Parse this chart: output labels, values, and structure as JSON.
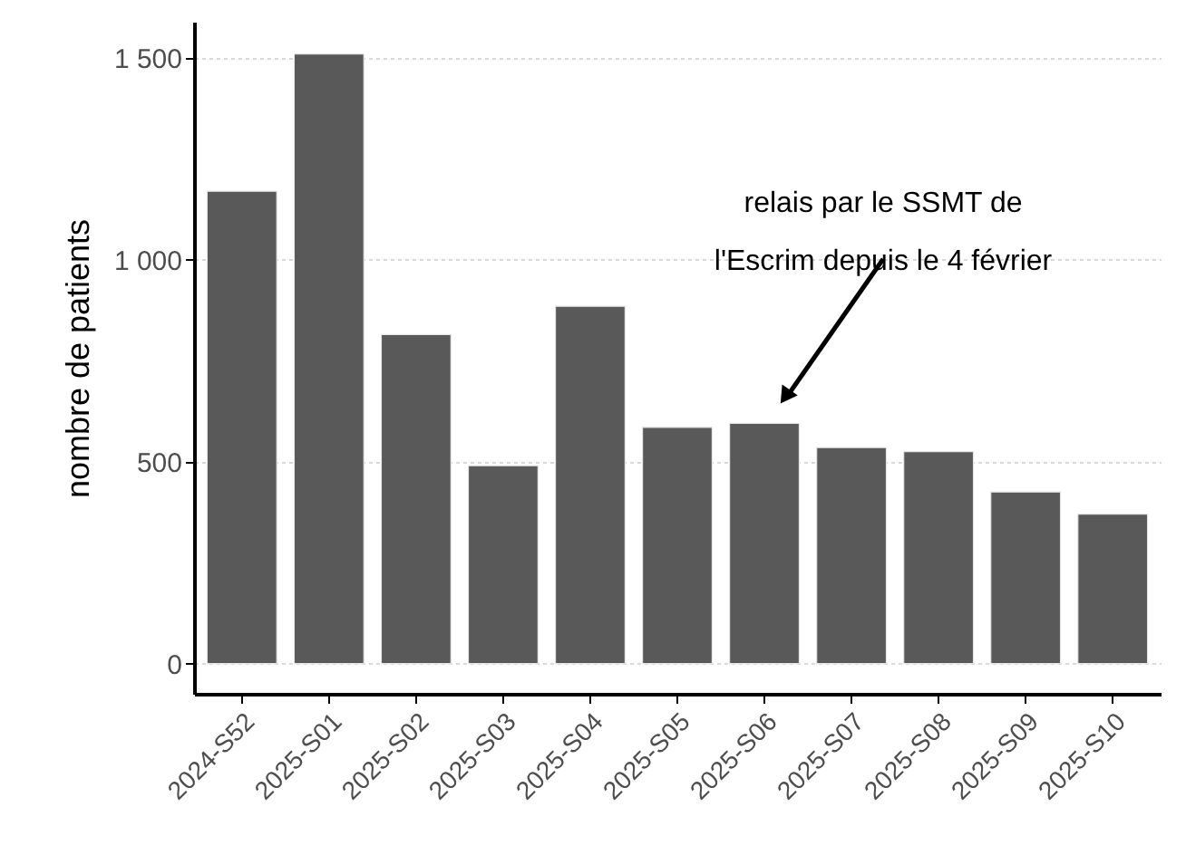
{
  "chart_data": {
    "type": "bar",
    "ylabel": "nombre de patients",
    "categories": [
      "2024-S52",
      "2025-S01",
      "2025-S02",
      "2025-S03",
      "2025-S04",
      "2025-S05",
      "2025-S06",
      "2025-S07",
      "2025-S08",
      "2025-S09",
      "2025-S10"
    ],
    "values": [
      1170,
      1510,
      815,
      490,
      885,
      585,
      595,
      535,
      525,
      425,
      370
    ],
    "color": "#595959",
    "ylim": [
      -75,
      1590
    ],
    "yticks": [
      0,
      500,
      {
        "value": 1000,
        "label": "1 000"
      },
      {
        "value": 1500,
        "label": "1 500"
      }
    ],
    "grid": "y",
    "annotations": [
      "relais par le SSMT de\nl'Escrim depuis le 4 février"
    ]
  }
}
